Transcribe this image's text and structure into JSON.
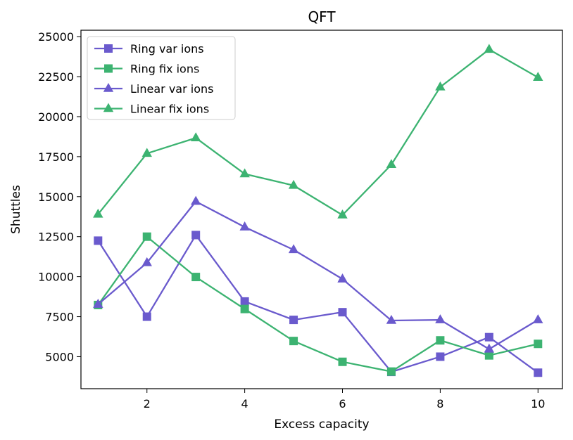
{
  "chart_data": {
    "type": "line",
    "title": "QFT",
    "xlabel": "Excess capacity",
    "ylabel": "Shuttles",
    "x": [
      1,
      2,
      3,
      4,
      5,
      6,
      7,
      8,
      9,
      10
    ],
    "xlim": [
      0.65,
      10.5
    ],
    "ylim": [
      3000,
      25400
    ],
    "xticks": [
      2,
      4,
      6,
      8,
      10
    ],
    "yticks": [
      5000,
      7500,
      10000,
      12500,
      15000,
      17500,
      20000,
      22500,
      25000
    ],
    "grid": false,
    "legend_position": "top-left",
    "series": [
      {
        "name": "Ring var ions",
        "marker": "square",
        "color": "#6a5acd",
        "values": [
          12250,
          7500,
          12600,
          8450,
          7300,
          7780,
          4050,
          5000,
          6220,
          4000
        ]
      },
      {
        "name": "Ring fix ions",
        "marker": "square",
        "color": "#3cb371",
        "values": [
          8230,
          12500,
          9980,
          7980,
          5980,
          4680,
          4070,
          6020,
          5080,
          5800
        ]
      },
      {
        "name": "Linear var ions",
        "marker": "triangle",
        "color": "#6a5acd",
        "values": [
          8270,
          10870,
          14700,
          13100,
          11680,
          9850,
          7260,
          7300,
          5470,
          7300
        ]
      },
      {
        "name": "Linear fix ions",
        "marker": "triangle",
        "color": "#3cb371",
        "values": [
          13900,
          17700,
          18670,
          16420,
          15700,
          13850,
          17000,
          21850,
          24200,
          22450
        ]
      }
    ]
  }
}
